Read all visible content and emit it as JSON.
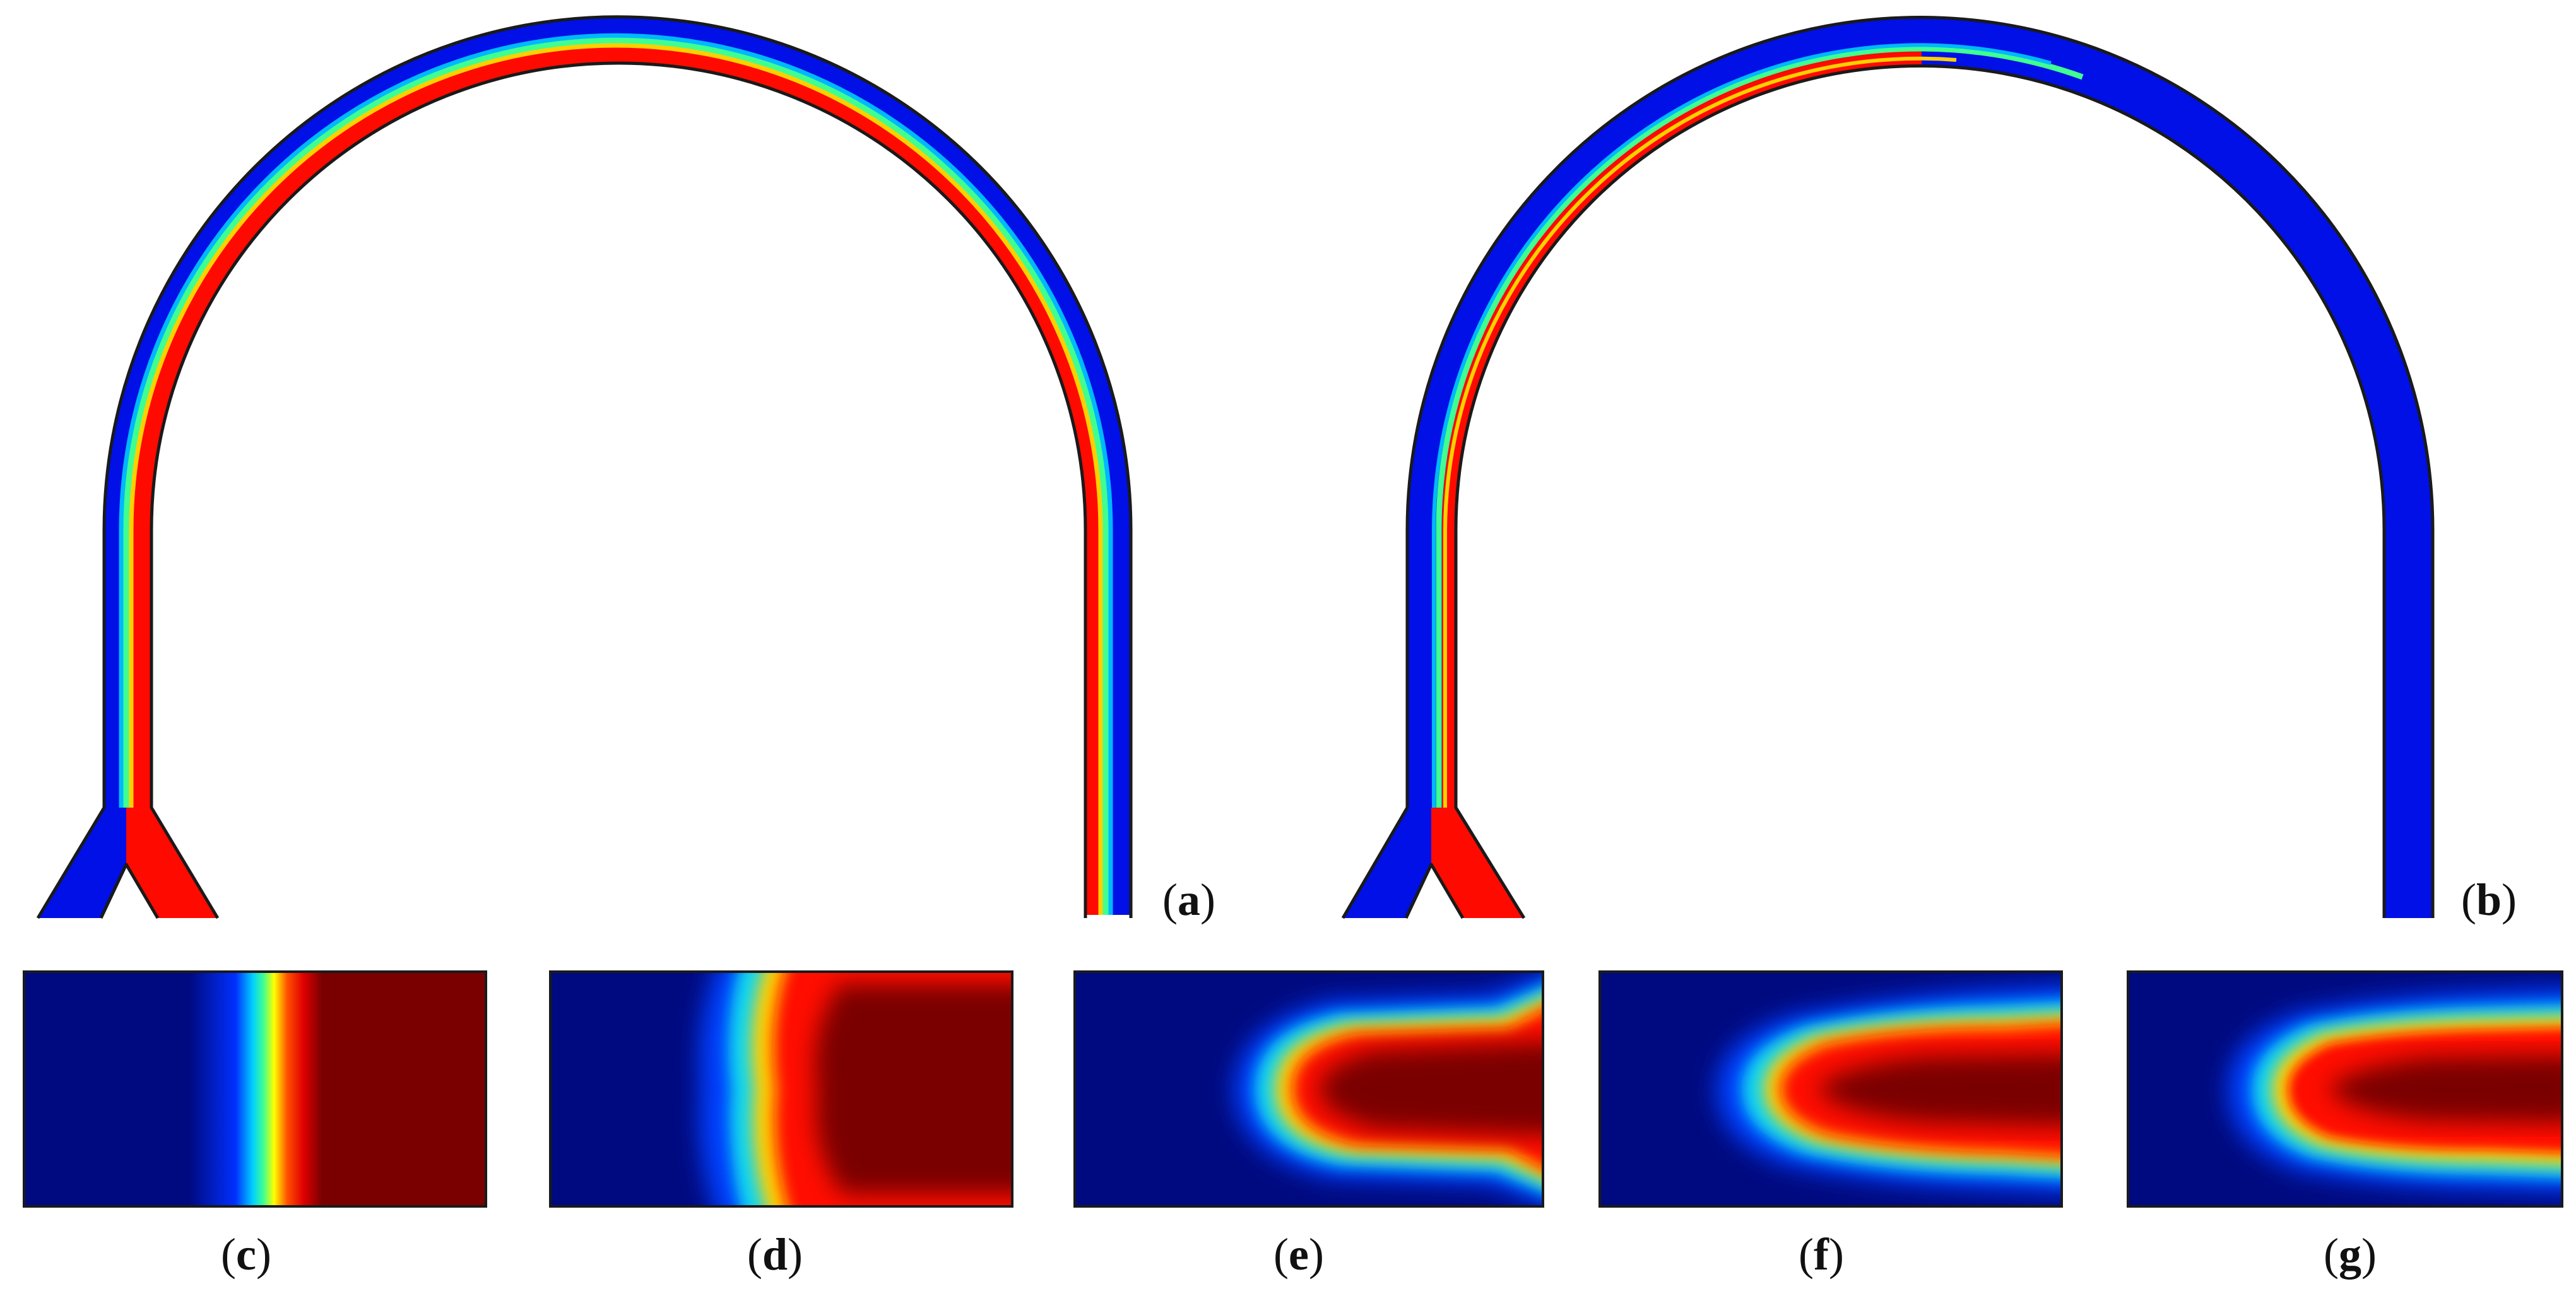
{
  "panels": [
    {
      "id": "a",
      "label_open": "(",
      "letter": "a",
      "label_close": ")"
    },
    {
      "id": "b",
      "label_open": "(",
      "letter": "b",
      "label_close": ")"
    },
    {
      "id": "c",
      "label_open": "(",
      "letter": "c",
      "label_close": ")"
    },
    {
      "id": "d",
      "label_open": "(",
      "letter": "d",
      "label_close": ")"
    },
    {
      "id": "e",
      "label_open": "(",
      "letter": "e",
      "label_close": ")"
    },
    {
      "id": "f",
      "label_open": "(",
      "letter": "f",
      "label_close": ")"
    },
    {
      "id": "g",
      "label_open": "(",
      "letter": "g",
      "label_close": ")"
    }
  ],
  "colors": {
    "fluid_a": "#0010e6",
    "fluid_b": "#ff0a00",
    "cross_low": "#000a80",
    "cross_high": "#7a0000",
    "outline": "#1a1a1a"
  },
  "icons": [
    "u-channel-mixer-a",
    "u-channel-mixer-b",
    "concentration-cross-section"
  ]
}
